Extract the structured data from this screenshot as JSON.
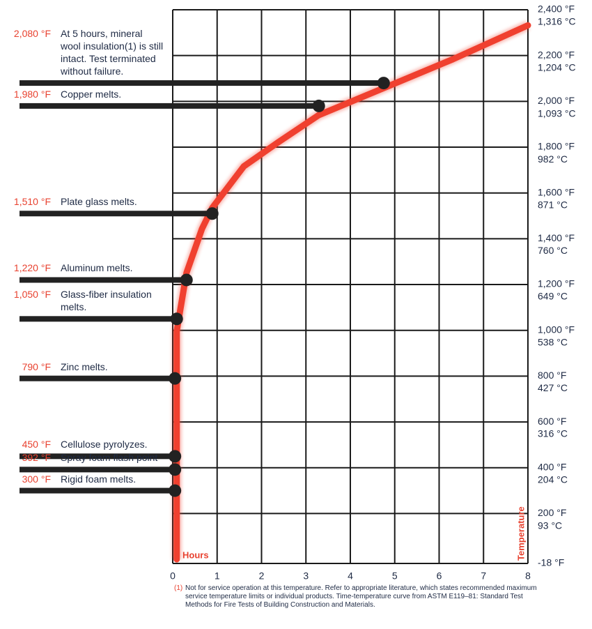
{
  "chart_data": {
    "type": "line",
    "x_label": "Hours",
    "y_label": "Temperature",
    "x": [
      0.09,
      0.09,
      0.31,
      0.66,
      0.89,
      1.6,
      2.38,
      3.29,
      4.74,
      6.31,
      8
    ],
    "series": [
      {
        "color": "#f0402f",
        "values": [
          0,
          997,
          1251,
          1444,
          1535,
          1716,
          1822,
          1940,
          2057,
          2184,
          2332
        ]
      }
    ],
    "xlim": [
      0,
      8
    ],
    "xticks": [
      0,
      1,
      2,
      3,
      4,
      5,
      6,
      7,
      8
    ],
    "ylim": [
      -18,
      2400
    ],
    "yticks": [
      {
        "value": -18,
        "label": "-18 °F"
      },
      {
        "value": 200,
        "label": "200 °F"
      },
      {
        "value": 400,
        "label": "400 °F"
      },
      {
        "value": 600,
        "label": "600 °F"
      },
      {
        "value": 800,
        "label": "800 °F"
      },
      {
        "value": 1000,
        "label": "1,000 °F"
      },
      {
        "value": 1200,
        "label": "1,200 °F"
      },
      {
        "value": 1400,
        "label": "1,400 °F"
      },
      {
        "value": 1600,
        "label": "1,600 °F"
      },
      {
        "value": 1800,
        "label": "1,800 °F"
      },
      {
        "value": 2000,
        "label": "2,000 °F"
      },
      {
        "value": 2200,
        "label": "2,200 °F"
      },
      {
        "value": 2400,
        "label": "2,400 °F"
      }
    ],
    "y2lim": [
      -27.8,
      1315.6
    ],
    "y2ticks": [
      {
        "value": 93,
        "label": "93 °C"
      },
      {
        "value": 204,
        "label": "204 °C"
      },
      {
        "value": 316,
        "label": "316 °C"
      },
      {
        "value": 427,
        "label": "427 °C"
      },
      {
        "value": 538,
        "label": "538 °C"
      },
      {
        "value": 649,
        "label": "649 °C"
      },
      {
        "value": 760,
        "label": "760 °C"
      },
      {
        "value": 871,
        "label": "871 °C"
      },
      {
        "value": 982,
        "label": "982 °C"
      },
      {
        "value": 1093,
        "label": "1,093 °C"
      },
      {
        "value": 1204,
        "label": "1,204 °C"
      },
      {
        "value": 1316,
        "label": "1,316 °C"
      }
    ],
    "grid": true,
    "events": {
      "color": "#222222",
      "x": [
        4.75,
        3.29,
        0.89,
        0.31,
        0.09,
        0.05,
        0.05,
        0.05,
        0.05
      ],
      "values": [
        2080,
        1980,
        1510,
        1220,
        1050,
        790,
        450,
        392,
        300
      ],
      "value_labels": [
        "2,080 °F",
        "1,980 °F",
        "1,510 °F",
        "1,220 °F",
        "1,050 °F",
        "790 °F",
        "450 °F",
        "392 °F",
        "300 °F"
      ],
      "labels": [
        "At 5 hours, mineral wool insulation(1) is still intact. Test terminated without failure.",
        "Copper melts.",
        "Plate glass melts.",
        "Aluminum melts.",
        "Glass-fiber insulation melts.",
        "Zinc melts.",
        "Cellulose pyrolyzes.",
        "Spray foam flash point",
        "Rigid foam melts."
      ]
    },
    "footnote": {
      "marker": "(1)",
      "text": "Not for service operation at this temperature. Refer to appropriate literature, which states recommended maximum service temperature limits or individual products. Time-temperature curve from ASTM E119–81: Standard Test Methods for Fire Tests of Building Construction and Materials."
    }
  }
}
